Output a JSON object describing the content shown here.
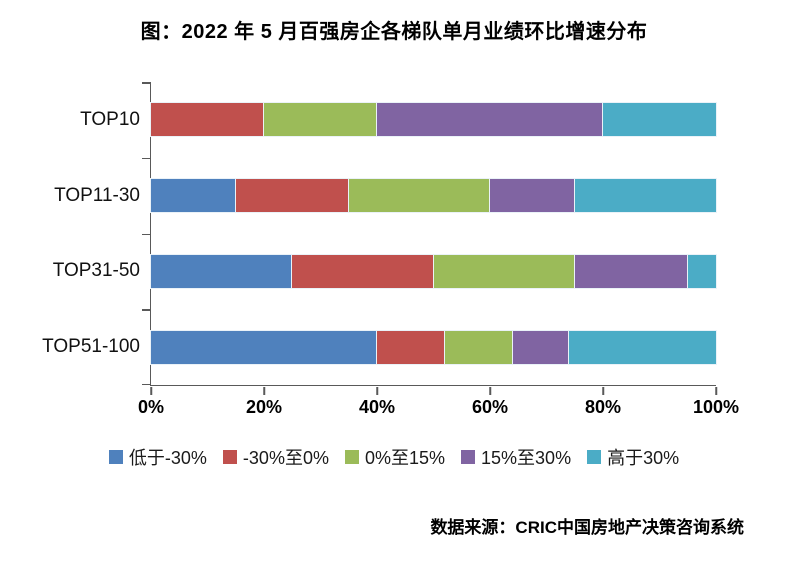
{
  "title": "图：2022 年 5 月百强房企各梯队单月业绩环比增速分布",
  "source": "数据来源：CRIC中国房地产决策咨询系统",
  "colors": {
    "axis": "#595959",
    "series_blue": "#4F81BD",
    "series_red": "#C0504D",
    "series_green": "#9BBB59",
    "series_purple": "#8064A2",
    "series_cyan": "#4BACC6"
  },
  "chart_data": {
    "type": "bar",
    "orientation": "horizontal",
    "stacked": true,
    "title": "图：2022 年 5 月百强房企各梯队单月业绩环比增速分布",
    "xlabel": "",
    "ylabel": "",
    "xlim": [
      0,
      100
    ],
    "grid": false,
    "legend_position": "bottom",
    "categories": [
      "TOP10",
      "TOP11-30",
      "TOP31-50",
      "TOP51-100"
    ],
    "x_ticks": [
      "0%",
      "20%",
      "40%",
      "60%",
      "80%",
      "100%"
    ],
    "x_tick_values": [
      0,
      20,
      40,
      60,
      80,
      100
    ],
    "series": [
      {
        "name": "低于-30%",
        "color": "#4F81BD",
        "values": [
          0,
          15,
          25,
          40
        ]
      },
      {
        "name": "-30%至0%",
        "color": "#C0504D",
        "values": [
          20,
          20,
          25,
          12
        ]
      },
      {
        "name": "0%至15%",
        "color": "#9BBB59",
        "values": [
          20,
          25,
          25,
          12
        ]
      },
      {
        "name": "15%至30%",
        "color": "#8064A2",
        "values": [
          40,
          15,
          20,
          10
        ]
      },
      {
        "name": "高于30%",
        "color": "#4BACC6",
        "values": [
          20,
          25,
          5,
          26
        ]
      }
    ]
  }
}
